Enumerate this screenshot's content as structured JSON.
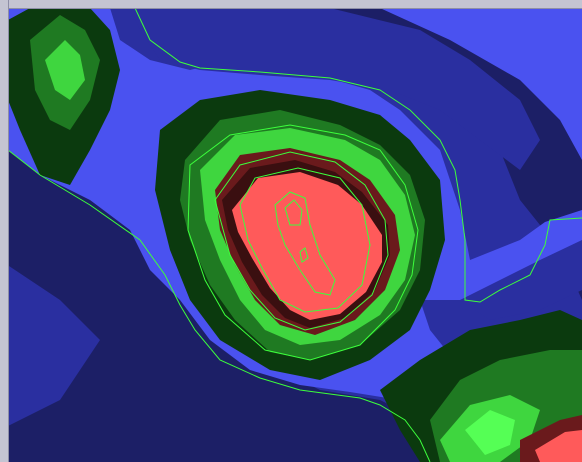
{
  "map": {
    "background_color": "#1c1f66",
    "frame_color": "#c4c4d2",
    "contour_color": "#3cff3c",
    "palette": {
      "deep_blue": "#1c1f66",
      "mid_blue": "#2a2fa0",
      "bright_blue": "#4a52f0",
      "dark_green": "#0b3a0e",
      "green": "#1f7a22",
      "light_green": "#3fd63f",
      "bright_green": "#55ff55",
      "dark_red": "#3a0f10",
      "maroon": "#6a1a1c",
      "red": "#ff5a5a"
    }
  }
}
